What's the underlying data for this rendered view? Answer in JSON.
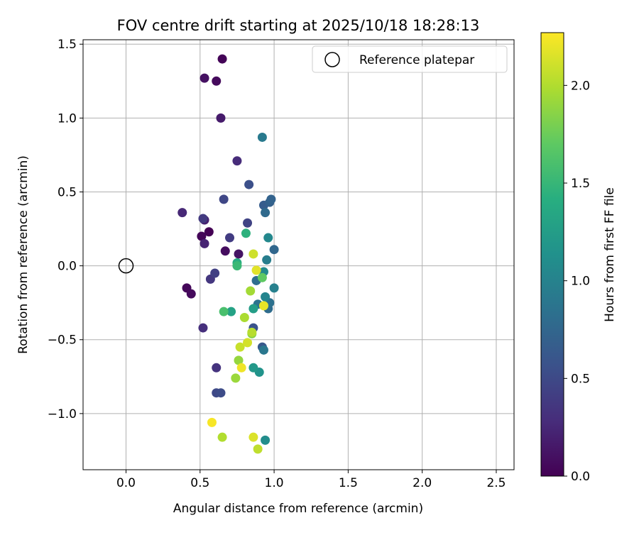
{
  "chart_data": {
    "type": "scatter",
    "title": "FOV centre drift starting at 2025/10/18 18:28:13",
    "xlabel": "Angular distance from reference (arcmin)",
    "ylabel": "Rotation from reference (arcmin)",
    "xlim": [
      -0.29,
      2.62
    ],
    "ylim": [
      -1.38,
      1.53
    ],
    "xticks": [
      0.0,
      0.5,
      1.0,
      1.5,
      2.0,
      2.5
    ],
    "xtick_labels": [
      "0.0",
      "0.5",
      "1.0",
      "1.5",
      "2.0",
      "2.5"
    ],
    "yticks": [
      -1.0,
      -0.5,
      0.0,
      0.5,
      1.0,
      1.5
    ],
    "ytick_labels": [
      "−1.0",
      "−0.5",
      "0.0",
      "0.5",
      "1.0",
      "1.5"
    ],
    "grid": true,
    "legend": {
      "position": "top-right",
      "entries": [
        "Reference platepar"
      ]
    },
    "reference_point": {
      "x": 0.0,
      "y": 0.0,
      "label": "Reference platepar"
    },
    "colorbar": {
      "label": "Hours from first FF file",
      "range": [
        0.0,
        2.27
      ],
      "ticks": [
        0.0,
        0.5,
        1.0,
        1.5,
        2.0
      ],
      "tick_labels": [
        "0.0",
        "0.5",
        "1.0",
        "1.5",
        "2.0"
      ],
      "colormap": "viridis"
    },
    "points": [
      {
        "x": 0.65,
        "y": 1.4,
        "h": 0.02
      },
      {
        "x": 0.61,
        "y": 1.25,
        "h": 0.06
      },
      {
        "x": 0.53,
        "y": 1.27,
        "h": 0.1
      },
      {
        "x": 0.56,
        "y": 0.23,
        "h": 0.0
      },
      {
        "x": 0.51,
        "y": 0.2,
        "h": 0.03
      },
      {
        "x": 0.41,
        "y": -0.15,
        "h": 0.04
      },
      {
        "x": 0.44,
        "y": -0.19,
        "h": 0.06
      },
      {
        "x": 0.67,
        "y": 0.1,
        "h": 0.08
      },
      {
        "x": 0.76,
        "y": 0.08,
        "h": 0.12
      },
      {
        "x": 0.64,
        "y": 1.0,
        "h": 0.17
      },
      {
        "x": 0.53,
        "y": 0.31,
        "h": 0.2
      },
      {
        "x": 0.53,
        "y": 0.15,
        "h": 0.22
      },
      {
        "x": 0.38,
        "y": 0.36,
        "h": 0.25
      },
      {
        "x": 0.75,
        "y": 0.71,
        "h": 0.28
      },
      {
        "x": 0.52,
        "y": -0.42,
        "h": 0.3
      },
      {
        "x": 0.61,
        "y": -0.69,
        "h": 0.33
      },
      {
        "x": 0.57,
        "y": -0.09,
        "h": 0.36
      },
      {
        "x": 0.52,
        "y": 0.32,
        "h": 0.38
      },
      {
        "x": 0.7,
        "y": 0.19,
        "h": 0.4
      },
      {
        "x": 0.6,
        "y": -0.05,
        "h": 0.42
      },
      {
        "x": 0.82,
        "y": 0.29,
        "h": 0.45
      },
      {
        "x": 0.66,
        "y": 0.45,
        "h": 0.48
      },
      {
        "x": 0.61,
        "y": -0.86,
        "h": 0.5
      },
      {
        "x": 0.64,
        "y": -0.86,
        "h": 0.52
      },
      {
        "x": 0.83,
        "y": 0.55,
        "h": 0.55
      },
      {
        "x": 0.86,
        "y": -0.42,
        "h": 0.58
      },
      {
        "x": 0.92,
        "y": -0.55,
        "h": 0.62
      },
      {
        "x": 0.93,
        "y": 0.41,
        "h": 0.66
      },
      {
        "x": 0.97,
        "y": 0.43,
        "h": 0.7
      },
      {
        "x": 0.98,
        "y": 0.45,
        "h": 0.72
      },
      {
        "x": 1.0,
        "y": 0.11,
        "h": 0.75
      },
      {
        "x": 0.94,
        "y": 0.36,
        "h": 0.78
      },
      {
        "x": 0.96,
        "y": -0.29,
        "h": 0.8
      },
      {
        "x": 0.88,
        "y": -0.1,
        "h": 0.82
      },
      {
        "x": 0.97,
        "y": -0.25,
        "h": 0.84
      },
      {
        "x": 0.89,
        "y": -0.26,
        "h": 0.86
      },
      {
        "x": 0.93,
        "y": -0.57,
        "h": 0.9
      },
      {
        "x": 0.92,
        "y": 0.87,
        "h": 0.92
      },
      {
        "x": 0.95,
        "y": 0.04,
        "h": 0.95
      },
      {
        "x": 1.0,
        "y": -0.15,
        "h": 0.98
      },
      {
        "x": 0.94,
        "y": -0.21,
        "h": 1.02
      },
      {
        "x": 0.96,
        "y": 0.19,
        "h": 1.05
      },
      {
        "x": 0.93,
        "y": -0.04,
        "h": 1.08
      },
      {
        "x": 0.94,
        "y": -1.18,
        "h": 1.1
      },
      {
        "x": 0.9,
        "y": -0.72,
        "h": 1.15
      },
      {
        "x": 0.86,
        "y": -0.69,
        "h": 1.2
      },
      {
        "x": 0.86,
        "y": -0.29,
        "h": 1.25
      },
      {
        "x": 0.71,
        "y": -0.31,
        "h": 1.3
      },
      {
        "x": 0.75,
        "y": 0.02,
        "h": 1.4
      },
      {
        "x": 0.81,
        "y": 0.22,
        "h": 1.45
      },
      {
        "x": 0.75,
        "y": 0.0,
        "h": 1.52
      },
      {
        "x": 0.66,
        "y": -0.31,
        "h": 1.6
      },
      {
        "x": 0.92,
        "y": -0.08,
        "h": 1.7
      },
      {
        "x": 0.85,
        "y": -0.46,
        "h": 1.85
      },
      {
        "x": 0.76,
        "y": -0.64,
        "h": 1.9
      },
      {
        "x": 0.74,
        "y": -0.76,
        "h": 1.92
      },
      {
        "x": 0.84,
        "y": -0.17,
        "h": 1.95
      },
      {
        "x": 0.8,
        "y": -0.35,
        "h": 1.98
      },
      {
        "x": 0.65,
        "y": -1.16,
        "h": 2.0
      },
      {
        "x": 0.85,
        "y": -0.45,
        "h": 2.02
      },
      {
        "x": 0.89,
        "y": -1.24,
        "h": 2.05
      },
      {
        "x": 0.77,
        "y": -0.55,
        "h": 2.08
      },
      {
        "x": 0.86,
        "y": 0.08,
        "h": 2.1
      },
      {
        "x": 0.82,
        "y": -0.52,
        "h": 2.12
      },
      {
        "x": 0.86,
        "y": -1.16,
        "h": 2.15
      },
      {
        "x": 0.88,
        "y": -0.03,
        "h": 2.17
      },
      {
        "x": 0.93,
        "y": -0.27,
        "h": 2.2
      },
      {
        "x": 0.78,
        "y": -0.69,
        "h": 2.22
      },
      {
        "x": 0.58,
        "y": -1.06,
        "h": 2.25
      }
    ]
  }
}
